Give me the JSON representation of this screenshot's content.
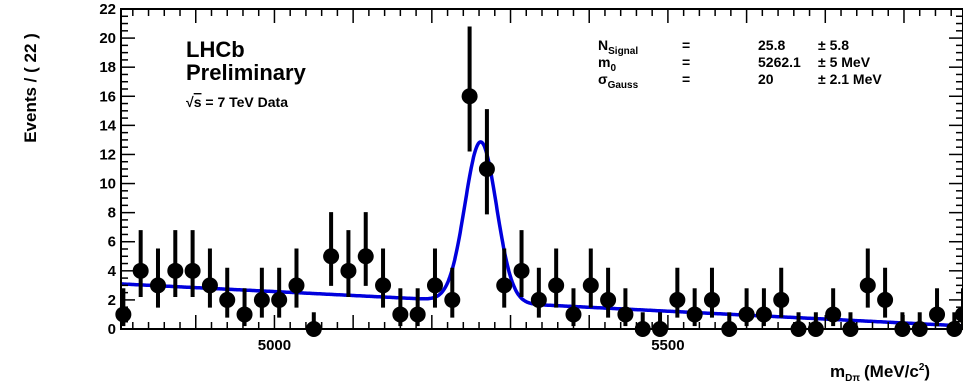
{
  "chart_data": {
    "type": "scatter",
    "ylabel": "Events / ( 22 )",
    "xlabel_main": "m",
    "xlabel_sub": "Dπ",
    "xlabel_unit_pre": "(MeV/c",
    "xlabel_unit_sup": "2",
    "xlabel_unit_post": ")",
    "xlim": [
      4805,
      5875
    ],
    "ylim": [
      0,
      22
    ],
    "xticks_labeled": [
      5000,
      5500
    ],
    "yticks": [
      0,
      2,
      4,
      6,
      8,
      10,
      12,
      14,
      16,
      18,
      20,
      22
    ],
    "annotation": {
      "experiment": "LHCb",
      "status": "Preliminary",
      "sqrt_symbol": "√",
      "energy_var": "s",
      "energy_text": " = 7 TeV Data"
    },
    "fit_params": [
      {
        "name": "N",
        "sub": "Signal",
        "eq": "=",
        "value": "25.8",
        "error": "± 5.8"
      },
      {
        "name": "m",
        "sub": "0",
        "eq": "=",
        "value": "5262.1",
        "error": "± 5 MeV"
      },
      {
        "name": "σ",
        "sub": "Gauss",
        "eq": "=",
        "value": "20",
        "error": "± 2.1 MeV"
      }
    ],
    "colors": {
      "fit": "#0000dd",
      "data": "#000000"
    },
    "series": [
      {
        "type": "data_points_with_errors",
        "x": [
          4808,
          4830,
          4852,
          4874,
          4896,
          4918,
          4940,
          4962,
          4984,
          5006,
          5028,
          5050,
          5072,
          5094,
          5116,
          5138,
          5160,
          5182,
          5204,
          5226,
          5248,
          5270,
          5292,
          5314,
          5336,
          5358,
          5380,
          5402,
          5424,
          5446,
          5468,
          5490,
          5512,
          5534,
          5556,
          5578,
          5600,
          5622,
          5644,
          5666,
          5688,
          5710,
          5732,
          5754,
          5776,
          5798,
          5820,
          5842,
          5864
        ],
        "y": [
          1,
          4,
          3,
          4,
          4,
          3,
          2,
          1,
          2,
          2,
          3,
          0,
          5,
          4,
          5,
          3,
          1,
          1,
          3,
          2,
          16,
          11,
          3,
          4,
          2,
          3,
          1,
          3,
          2,
          1,
          0,
          0,
          2,
          1,
          2,
          0,
          1,
          1,
          2,
          0,
          0,
          1,
          0,
          3,
          2,
          0,
          0,
          1,
          0
        ]
      },
      {
        "type": "fit_curve",
        "background": {
          "a0": 3.1,
          "x0": 4805,
          "slope": -0.0027
        },
        "signal": {
          "amplitude": 11.0,
          "mean": 5262.1,
          "sigma": 20
        }
      }
    ],
    "extra_points": [
      {
        "x": 5875,
        "y": 1
      }
    ]
  }
}
